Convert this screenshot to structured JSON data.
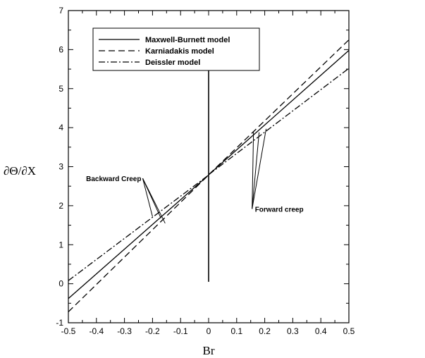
{
  "chart_data": {
    "type": "line",
    "xlabel": "Br",
    "ylabel": "∂Θ/∂X",
    "xlim": [
      -0.5,
      0.5
    ],
    "ylim": [
      -1,
      7
    ],
    "xticks": [
      "-0.5",
      "-0.4",
      "-0.3",
      "-0.2",
      "-0.1",
      "0",
      "0.1",
      "0.2",
      "0.3",
      "0.4",
      "0.5"
    ],
    "yticks": [
      "-1",
      "0",
      "1",
      "2",
      "3",
      "4",
      "5",
      "6",
      "7"
    ],
    "grid": false,
    "legend_position": "top-left",
    "series": [
      {
        "name": "Maxwell-Burnett model",
        "style": "solid",
        "segments": [
          [
            [
              -0.5,
              -0.38
            ],
            [
              -0.001,
              2.78
            ]
          ],
          [
            [
              0.001,
              2.8
            ],
            [
              0.5,
              5.98
            ]
          ]
        ]
      },
      {
        "name": "Karniadakis model",
        "style": "dashed",
        "segments": [
          [
            [
              -0.5,
              -0.72
            ],
            [
              -0.001,
              2.78
            ]
          ],
          [
            [
              0.001,
              2.8
            ],
            [
              0.5,
              6.25
            ]
          ]
        ]
      },
      {
        "name": "Deissler model",
        "style": "dashdot",
        "segments": [
          [
            [
              -0.5,
              0.08
            ],
            [
              -0.001,
              2.78
            ]
          ],
          [
            [
              0.001,
              2.8
            ],
            [
              0.5,
              5.52
            ]
          ]
        ]
      }
    ],
    "vertical_marker": {
      "x": 0,
      "y_range": [
        0.05,
        5.55
      ]
    },
    "annotations": [
      {
        "text": "Backward Creep",
        "anchor": [
          -0.235,
          2.7
        ],
        "targets": [
          [
            -0.2,
            1.72
          ],
          [
            -0.17,
            1.68
          ],
          [
            -0.155,
            1.55
          ]
        ]
      },
      {
        "text": "Forward creep",
        "anchor": [
          0.155,
          1.92
        ],
        "targets": [
          [
            0.16,
            3.9
          ],
          [
            0.18,
            3.88
          ],
          [
            0.205,
            3.97
          ]
        ]
      }
    ]
  }
}
